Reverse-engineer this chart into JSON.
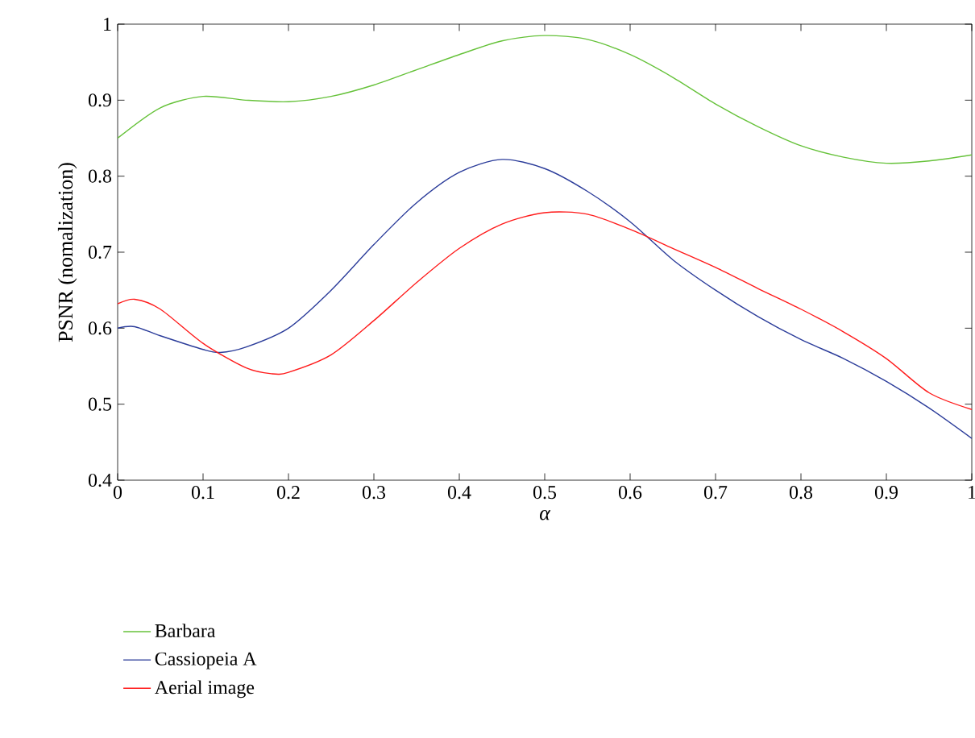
{
  "chart_data": {
    "type": "line",
    "xlabel": "α",
    "ylabel": "PSNR (nomalization)",
    "xlim": [
      0,
      1
    ],
    "ylim": [
      0.4,
      1
    ],
    "xticks": [
      0,
      0.1,
      0.2,
      0.3,
      0.4,
      0.5,
      0.6,
      0.7,
      0.8,
      0.9,
      1
    ],
    "yticks": [
      0.4,
      0.5,
      0.6,
      0.7,
      0.8,
      0.9,
      1
    ],
    "legend": "bottom",
    "grid": false,
    "marker": "none",
    "line_style": "solid",
    "series": [
      {
        "name": "Barbara",
        "color": "#66c23a",
        "x": [
          0,
          0.05,
          0.1,
          0.15,
          0.2,
          0.25,
          0.3,
          0.35,
          0.4,
          0.45,
          0.5,
          0.55,
          0.6,
          0.65,
          0.7,
          0.75,
          0.8,
          0.85,
          0.9,
          0.95,
          1
        ],
        "values": [
          0.85,
          0.89,
          0.905,
          0.9,
          0.898,
          0.905,
          0.92,
          0.94,
          0.96,
          0.978,
          0.985,
          0.98,
          0.96,
          0.93,
          0.895,
          0.865,
          0.84,
          0.825,
          0.817,
          0.82,
          0.828
        ]
      },
      {
        "name": "Cassiopeia A",
        "color": "#2b3c9a",
        "x": [
          0,
          0.02,
          0.05,
          0.1,
          0.12,
          0.15,
          0.2,
          0.25,
          0.3,
          0.35,
          0.4,
          0.45,
          0.5,
          0.55,
          0.6,
          0.65,
          0.7,
          0.75,
          0.8,
          0.85,
          0.9,
          0.95,
          1
        ],
        "values": [
          0.6,
          0.602,
          0.59,
          0.572,
          0.568,
          0.575,
          0.6,
          0.65,
          0.71,
          0.765,
          0.805,
          0.822,
          0.81,
          0.78,
          0.74,
          0.69,
          0.65,
          0.615,
          0.585,
          0.56,
          0.53,
          0.495,
          0.455
        ]
      },
      {
        "name": "Aerial image",
        "color": "#ff1a1a",
        "x": [
          0,
          0.02,
          0.05,
          0.1,
          0.15,
          0.18,
          0.2,
          0.25,
          0.3,
          0.35,
          0.4,
          0.45,
          0.5,
          0.55,
          0.6,
          0.65,
          0.7,
          0.75,
          0.8,
          0.85,
          0.9,
          0.95,
          1
        ],
        "values": [
          0.632,
          0.638,
          0.625,
          0.58,
          0.548,
          0.54,
          0.542,
          0.565,
          0.61,
          0.66,
          0.705,
          0.737,
          0.752,
          0.75,
          0.73,
          0.705,
          0.68,
          0.652,
          0.625,
          0.595,
          0.56,
          0.515,
          0.493
        ]
      }
    ]
  }
}
